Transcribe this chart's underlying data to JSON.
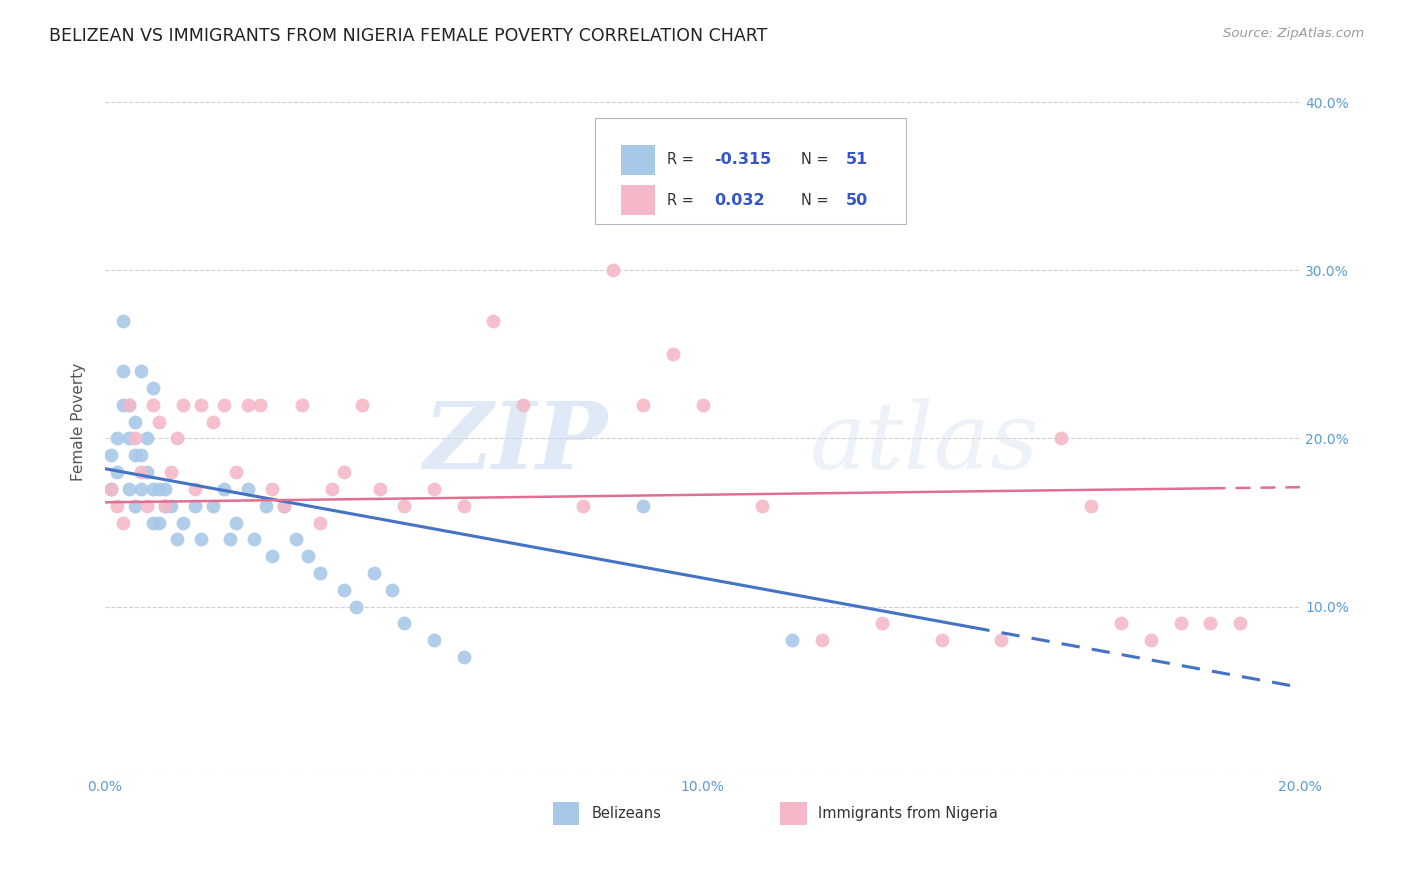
{
  "title": "BELIZEAN VS IMMIGRANTS FROM NIGERIA FEMALE POVERTY CORRELATION CHART",
  "source": "Source: ZipAtlas.com",
  "ylabel": "Female Poverty",
  "xlim": [
    0.0,
    0.2
  ],
  "ylim": [
    0.0,
    0.42
  ],
  "ytick_values": [
    0.0,
    0.1,
    0.2,
    0.3,
    0.4
  ],
  "right_ytick_labels": [
    "",
    "10.0%",
    "20.0%",
    "30.0%",
    "40.0%"
  ],
  "grid_color": "#d0d0d0",
  "background_color": "#ffffff",
  "blue_color": "#a8c8e8",
  "pink_color": "#f4b8c8",
  "blue_line_color": "#4472c4",
  "pink_line_color": "#e07090",
  "legend_R_color": "#3355cc",
  "R_blue": -0.315,
  "N_blue": 51,
  "R_pink": 0.032,
  "N_pink": 50,
  "belizean_x": [
    0.001,
    0.001,
    0.002,
    0.002,
    0.003,
    0.003,
    0.003,
    0.004,
    0.004,
    0.004,
    0.005,
    0.005,
    0.005,
    0.006,
    0.006,
    0.006,
    0.007,
    0.007,
    0.008,
    0.008,
    0.008,
    0.009,
    0.009,
    0.01,
    0.01,
    0.011,
    0.012,
    0.013,
    0.015,
    0.016,
    0.018,
    0.02,
    0.021,
    0.022,
    0.024,
    0.025,
    0.027,
    0.028,
    0.03,
    0.032,
    0.034,
    0.036,
    0.04,
    0.042,
    0.045,
    0.048,
    0.05,
    0.055,
    0.06,
    0.09,
    0.115
  ],
  "belizean_y": [
    0.19,
    0.17,
    0.18,
    0.2,
    0.22,
    0.24,
    0.27,
    0.17,
    0.2,
    0.22,
    0.16,
    0.19,
    0.21,
    0.17,
    0.19,
    0.24,
    0.18,
    0.2,
    0.15,
    0.17,
    0.23,
    0.15,
    0.17,
    0.16,
    0.17,
    0.16,
    0.14,
    0.15,
    0.16,
    0.14,
    0.16,
    0.17,
    0.14,
    0.15,
    0.17,
    0.14,
    0.16,
    0.13,
    0.16,
    0.14,
    0.13,
    0.12,
    0.11,
    0.1,
    0.12,
    0.11,
    0.09,
    0.08,
    0.07,
    0.16,
    0.08
  ],
  "nigeria_x": [
    0.001,
    0.002,
    0.003,
    0.004,
    0.005,
    0.006,
    0.007,
    0.008,
    0.009,
    0.01,
    0.011,
    0.012,
    0.013,
    0.015,
    0.016,
    0.018,
    0.02,
    0.022,
    0.024,
    0.026,
    0.028,
    0.03,
    0.033,
    0.036,
    0.038,
    0.04,
    0.043,
    0.046,
    0.05,
    0.055,
    0.06,
    0.065,
    0.07,
    0.08,
    0.085,
    0.09,
    0.095,
    0.1,
    0.11,
    0.12,
    0.13,
    0.14,
    0.15,
    0.16,
    0.165,
    0.17,
    0.175,
    0.18,
    0.185,
    0.19
  ],
  "nigeria_y": [
    0.17,
    0.16,
    0.15,
    0.22,
    0.2,
    0.18,
    0.16,
    0.22,
    0.21,
    0.16,
    0.18,
    0.2,
    0.22,
    0.17,
    0.22,
    0.21,
    0.22,
    0.18,
    0.22,
    0.22,
    0.17,
    0.16,
    0.22,
    0.15,
    0.17,
    0.18,
    0.22,
    0.17,
    0.16,
    0.17,
    0.16,
    0.27,
    0.22,
    0.16,
    0.3,
    0.22,
    0.25,
    0.22,
    0.16,
    0.08,
    0.09,
    0.08,
    0.08,
    0.2,
    0.16,
    0.09,
    0.08,
    0.09,
    0.09,
    0.09
  ],
  "watermark_zip": "ZIP",
  "watermark_atlas": "atlas",
  "legend_label_blue": "Belizeans",
  "legend_label_pink": "Immigrants from Nigeria",
  "blue_line_intercept": 0.182,
  "blue_line_slope": -0.65,
  "pink_line_intercept": 0.162,
  "pink_line_slope": 0.045
}
